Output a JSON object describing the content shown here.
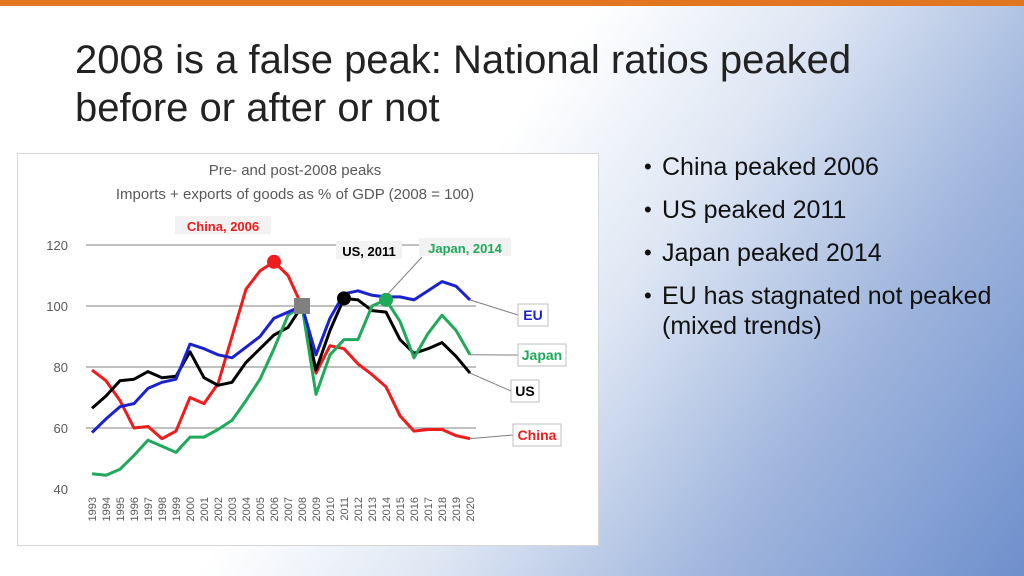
{
  "slide": {
    "title_lead": "2008 is a false peak:",
    "title_rest": " National ratios peaked before or after or not",
    "bullets": [
      "China peaked 2006",
      "US peaked 2011",
      "Japan peaked 2014",
      "EU has stagnated not peaked (mixed trends)"
    ],
    "accent_color": "#e2751f"
  },
  "chart_data": {
    "type": "line",
    "title": "Pre- and post-2008 peaks",
    "subtitle": "Imports + exports of goods as % of GDP (2008 = 100)",
    "xlabel": "",
    "ylabel": "",
    "ylim": [
      40,
      120
    ],
    "yticks": [
      40,
      60,
      80,
      100,
      120
    ],
    "grid": true,
    "x": [
      1993,
      1994,
      1995,
      1996,
      1997,
      1998,
      1999,
      2000,
      2001,
      2002,
      2003,
      2004,
      2005,
      2006,
      2007,
      2008,
      2009,
      2010,
      2011,
      2012,
      2013,
      2014,
      2015,
      2016,
      2017,
      2018,
      2019,
      2020
    ],
    "series": [
      {
        "name": "China",
        "color": "#ee1c1c",
        "values": [
          79,
          75.5,
          69,
          60,
          60.5,
          56.5,
          59,
          70,
          68,
          74.5,
          90,
          105.5,
          111.5,
          114.5,
          110,
          100,
          78,
          87,
          86,
          81,
          77.5,
          73.5,
          64,
          59,
          59.5,
          59.5,
          57.5,
          56.5
        ]
      },
      {
        "name": "US",
        "color": "#000000",
        "values": [
          66.5,
          70.5,
          75.5,
          76,
          78.5,
          76.5,
          77,
          85,
          76.5,
          74,
          75,
          81.5,
          86,
          90.5,
          93,
          100,
          79,
          92,
          102.5,
          102,
          98.5,
          98,
          89,
          84.5,
          86,
          88,
          83.5,
          78
        ]
      },
      {
        "name": "Japan",
        "color": "#1eaa5a",
        "values": [
          45,
          44.5,
          46.5,
          51,
          56,
          54,
          52,
          57,
          57,
          59.5,
          62.5,
          69,
          76,
          86,
          97,
          100,
          71,
          84,
          89,
          89,
          100,
          102,
          95,
          83,
          91,
          97,
          92,
          84
        ]
      },
      {
        "name": "EU",
        "color": "#1a22d0",
        "values": [
          58.5,
          63,
          67,
          68,
          73,
          75,
          76,
          87.5,
          86,
          84,
          83,
          86.5,
          90,
          96,
          98,
          100,
          84,
          96,
          104,
          105,
          103.5,
          103,
          103,
          102,
          105,
          108,
          106.5,
          102
        ]
      }
    ],
    "annotations": [
      {
        "text": "China, 2006",
        "x": 2006,
        "y": 114.5,
        "color": "#ee1c1c"
      },
      {
        "text": "US, 2011",
        "x": 2011,
        "y": 102.5,
        "color": "#000000"
      },
      {
        "text": "Japan, 2014",
        "x": 2014,
        "y": 102,
        "color": "#1eaa5a"
      }
    ],
    "reference_marker": {
      "x": 2008,
      "y": 100,
      "color": "#808080"
    }
  }
}
